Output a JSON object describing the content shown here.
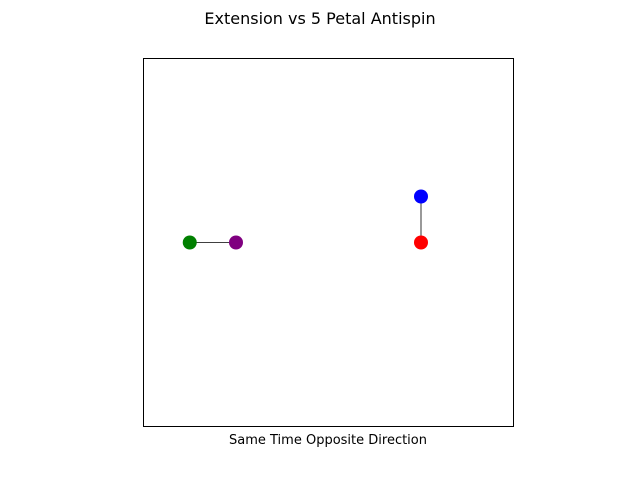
{
  "chart_data": {
    "type": "scatter",
    "title": "Extension vs 5 Petal Antispin",
    "xlabel": "Same Time Opposite Direction",
    "ylabel": "",
    "xlim": [
      -4,
      4
    ],
    "ylim": [
      -4,
      4
    ],
    "grid": false,
    "axes_ticks": false,
    "points": [
      {
        "id": "green",
        "x": -3.0,
        "y": 0.0,
        "color": "#008000"
      },
      {
        "id": "purple",
        "x": -2.0,
        "y": 0.0,
        "color": "#800080"
      },
      {
        "id": "blue",
        "x": 2.0,
        "y": 1.0,
        "color": "#0000ff"
      },
      {
        "id": "red",
        "x": 2.0,
        "y": 0.0,
        "color": "#ff0000"
      }
    ],
    "segments": [
      {
        "from": "green",
        "to": "purple",
        "color": "#000000"
      },
      {
        "from": "blue",
        "to": "red",
        "color": "#000000"
      }
    ]
  }
}
